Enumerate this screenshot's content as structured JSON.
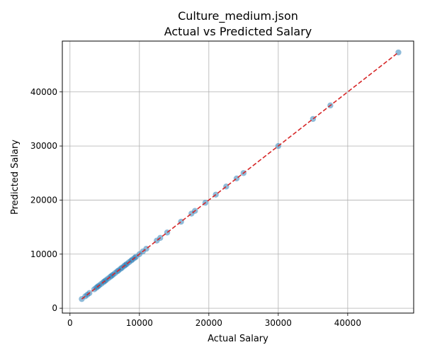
{
  "chart_data": {
    "type": "scatter",
    "title": "Culture_medium.json",
    "subtitle": "Actual vs Predicted Salary",
    "xlabel": "Actual Salary",
    "ylabel": "Predicted Salary",
    "xlim": [
      -1100,
      49500
    ],
    "ylim": [
      -900,
      49400
    ],
    "xticks": [
      0,
      10000,
      20000,
      30000,
      40000
    ],
    "yticks": [
      0,
      10000,
      20000,
      30000,
      40000
    ],
    "grid": true,
    "point_color": "#1f77b4",
    "line_color": "#d62728",
    "reference_line": {
      "style": "dashed",
      "x": [
        1700,
        47300
      ],
      "y": [
        1700,
        47300
      ]
    },
    "points": {
      "x": [
        1700,
        2200,
        2500,
        2800,
        3500,
        3800,
        4000,
        4200,
        4500,
        4800,
        5000,
        5200,
        5500,
        5800,
        6000,
        6200,
        6500,
        6800,
        7000,
        7300,
        7500,
        7800,
        8000,
        8200,
        8500,
        8800,
        9000,
        9300,
        9500,
        10000,
        10500,
        11000,
        12500,
        13000,
        14000,
        16000,
        17500,
        18000,
        19500,
        21000,
        22500,
        24000,
        25000,
        30000,
        35000,
        37500,
        47300
      ],
      "y": [
        1700,
        2200,
        2500,
        2800,
        3500,
        3800,
        4000,
        4200,
        4500,
        4800,
        5000,
        5200,
        5500,
        5800,
        6000,
        6200,
        6500,
        6800,
        7000,
        7300,
        7500,
        7800,
        8000,
        8200,
        8500,
        8800,
        9000,
        9300,
        9500,
        10000,
        10500,
        11000,
        12500,
        13000,
        14000,
        16000,
        17500,
        18000,
        19500,
        21000,
        22500,
        24000,
        25000,
        30000,
        35000,
        37500,
        47300
      ]
    }
  }
}
